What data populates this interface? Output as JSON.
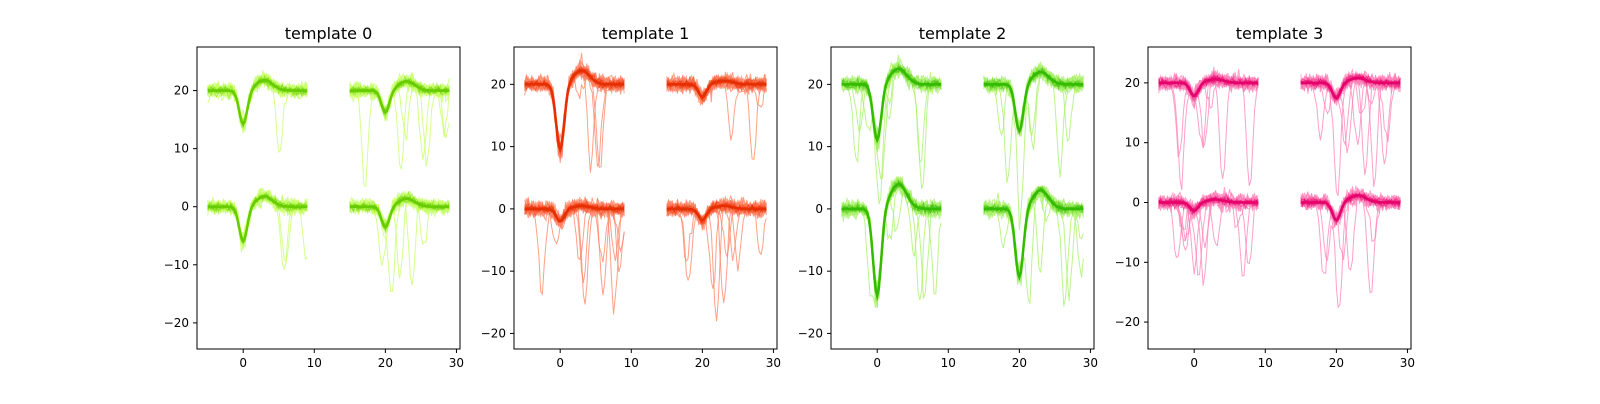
{
  "chart_data": [
    {
      "type": "line",
      "title": "template 0",
      "xlim": [
        -6.5,
        30.5
      ],
      "ylim": [
        -24.5,
        27.5
      ],
      "x_ticks": [
        0,
        10,
        20,
        30
      ],
      "y_ticks": [
        -20,
        -10,
        0,
        10,
        20
      ],
      "color_mean": "#66cc00",
      "color_trace": "#c6ff66",
      "channels": [
        {
          "x_offset": 0,
          "y_offset": 20,
          "trough": -5.8,
          "peak": 1.8,
          "trough_t": 0.0
        },
        {
          "x_offset": 20,
          "y_offset": 20,
          "trough": -3.8,
          "peak": 1.6,
          "trough_t": 0.0
        },
        {
          "x_offset": 0,
          "y_offset": 0,
          "trough": -6.0,
          "peak": 1.8,
          "trough_t": 0.0
        },
        {
          "x_offset": 20,
          "y_offset": 0,
          "trough": -3.6,
          "peak": 1.4,
          "trough_t": 0.0
        }
      ]
    },
    {
      "type": "line",
      "title": "template 1",
      "xlim": [
        -6.5,
        30.5
      ],
      "ylim": [
        -22.5,
        26.0
      ],
      "x_ticks": [
        0,
        10,
        20,
        30
      ],
      "y_ticks": [
        -20,
        -10,
        0,
        10,
        20
      ],
      "color_mean": "#e62e00",
      "color_trace": "#ff8060",
      "channels": [
        {
          "x_offset": 0,
          "y_offset": 20,
          "trough": -10.5,
          "peak": 2.2,
          "trough_t": 0.0
        },
        {
          "x_offset": 20,
          "y_offset": 20,
          "trough": -2.0,
          "peak": 0.6,
          "trough_t": 0.0
        },
        {
          "x_offset": 0,
          "y_offset": 0,
          "trough": -2.0,
          "peak": 0.5,
          "trough_t": 0.0
        },
        {
          "x_offset": 20,
          "y_offset": 0,
          "trough": -1.8,
          "peak": 0.5,
          "trough_t": 0.0
        }
      ]
    },
    {
      "type": "line",
      "title": "template 2",
      "xlim": [
        -6.5,
        30.5
      ],
      "ylim": [
        -22.5,
        26.0
      ],
      "x_ticks": [
        0,
        10,
        20,
        30
      ],
      "y_ticks": [
        -20,
        -10,
        0,
        10,
        20
      ],
      "color_mean": "#33bb00",
      "color_trace": "#a6f066",
      "channels": [
        {
          "x_offset": 0,
          "y_offset": 20,
          "trough": -9.0,
          "peak": 2.5,
          "trough_t": 0.0
        },
        {
          "x_offset": 20,
          "y_offset": 20,
          "trough": -7.5,
          "peak": 2.0,
          "trough_t": 0.0
        },
        {
          "x_offset": 0,
          "y_offset": 0,
          "trough": -14.0,
          "peak": 4.0,
          "trough_t": 0.0
        },
        {
          "x_offset": 20,
          "y_offset": 0,
          "trough": -11.0,
          "peak": 3.0,
          "trough_t": 0.0
        }
      ]
    },
    {
      "type": "line",
      "title": "template 3",
      "xlim": [
        -6.5,
        30.5
      ],
      "ylim": [
        -24.5,
        26.0
      ],
      "x_ticks": [
        0,
        10,
        20,
        30
      ],
      "y_ticks": [
        -20,
        -10,
        0,
        10,
        20
      ],
      "color_mean": "#e6006b",
      "color_trace": "#ff80b8",
      "channels": [
        {
          "x_offset": 0,
          "y_offset": 20,
          "trough": -2.2,
          "peak": 0.6,
          "trough_t": 0.0
        },
        {
          "x_offset": 20,
          "y_offset": 20,
          "trough": -2.6,
          "peak": 0.8,
          "trough_t": 0.0
        },
        {
          "x_offset": 0,
          "y_offset": 0,
          "trough": -1.4,
          "peak": 0.5,
          "trough_t": 0.0
        },
        {
          "x_offset": 20,
          "y_offset": 0,
          "trough": -3.0,
          "peak": 1.2,
          "trough_t": 0.0
        }
      ]
    }
  ]
}
